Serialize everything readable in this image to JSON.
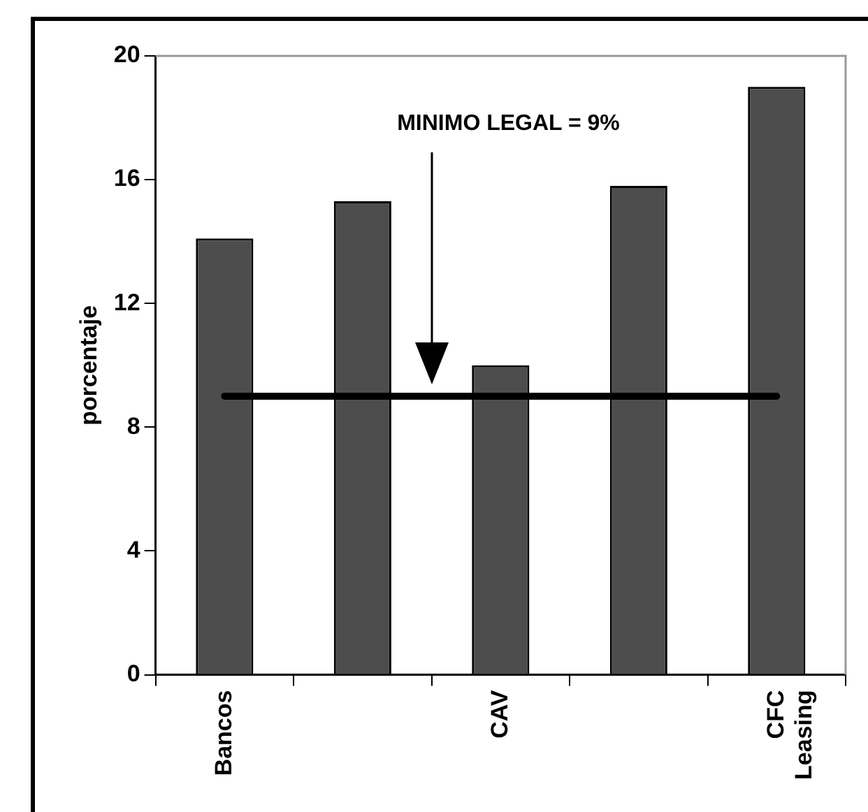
{
  "chart_data": {
    "type": "bar",
    "ylabel": "porcentaje",
    "categories": [
      "Bancos",
      null,
      "CAV",
      null,
      "CFC Leasing"
    ],
    "values": [
      14.1,
      15.3,
      10.0,
      15.8,
      19.0
    ],
    "color": "#4d4d4d",
    "ylim": [
      0,
      20
    ],
    "yticks": [
      0,
      4,
      8,
      12,
      16,
      20
    ],
    "ref_lines": [
      {
        "axis": "y",
        "value": 9,
        "color": "#000000"
      }
    ],
    "annotations": [
      "MINIMO LEGAL = 9%"
    ],
    "grid": false,
    "legend": false
  }
}
